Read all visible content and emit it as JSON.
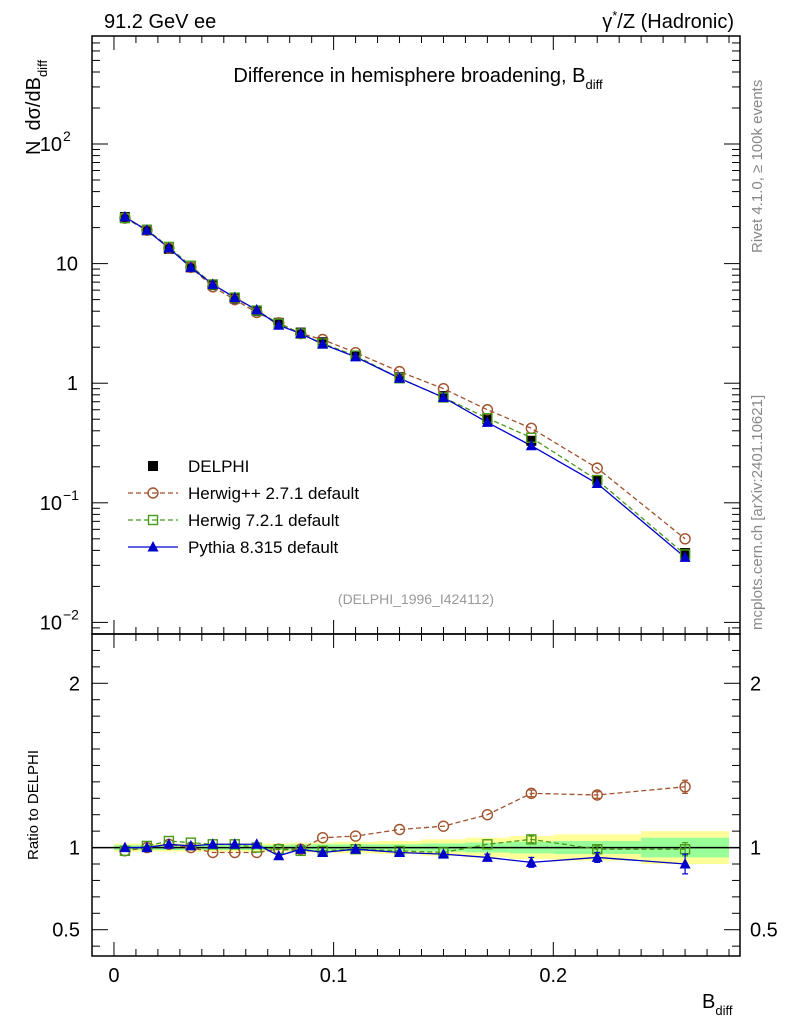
{
  "header": {
    "left": "91.2 GeV ee",
    "right_prefix": "γ",
    "right_sup": "*",
    "right_suffix": "/Z (Hadronic)"
  },
  "side_labels": {
    "rivet": "Rivet 4.1.0, ≥ 100k events",
    "mcplots": "mcplots.cern.ch [arXiv:2401.10621]"
  },
  "chart_data": {
    "type": "line",
    "title": "Difference in hemisphere broadening, B",
    "title_sub": "diff",
    "analysis_label": "(DELPHI_1996_I424112)",
    "xlabel": "B",
    "xlabel_sub": "diff",
    "ylabel_main": "N",
    "ylabel_dsigma": "dσ/dB",
    "ylabel_sub": "diff",
    "ylabel_ratio": "Ratio to DELPHI",
    "xlim": [
      -0.01,
      0.285
    ],
    "ylim_main": [
      0.008,
      800
    ],
    "ylim_ratio": [
      0.34,
      2.3
    ],
    "log_y_main": true,
    "x_ticks": [
      {
        "v": 0,
        "label": "0"
      },
      {
        "v": 0.1,
        "label": "0.1"
      },
      {
        "v": 0.2,
        "label": "0.2"
      }
    ],
    "y_ticks_main": [
      {
        "v": 0.01,
        "base": "10",
        "exp": "−2"
      },
      {
        "v": 0.1,
        "base": "10",
        "exp": "−1"
      },
      {
        "v": 1,
        "base": "1",
        "exp": ""
      },
      {
        "v": 10,
        "base": "10",
        "exp": ""
      },
      {
        "v": 100,
        "base": "10",
        "exp": "2"
      }
    ],
    "y_ticks_ratio": [
      {
        "v": 0.5,
        "label": "0.5"
      },
      {
        "v": 1,
        "label": "1"
      },
      {
        "v": 2,
        "label": "2"
      }
    ],
    "x": [
      0.005,
      0.015,
      0.025,
      0.035,
      0.045,
      0.055,
      0.065,
      0.075,
      0.085,
      0.095,
      0.11,
      0.13,
      0.15,
      0.17,
      0.19,
      0.22,
      0.26
    ],
    "bins": [
      [
        0,
        0.01
      ],
      [
        0.01,
        0.02
      ],
      [
        0.02,
        0.03
      ],
      [
        0.03,
        0.04
      ],
      [
        0.04,
        0.05
      ],
      [
        0.05,
        0.06
      ],
      [
        0.06,
        0.07
      ],
      [
        0.07,
        0.08
      ],
      [
        0.08,
        0.09
      ],
      [
        0.09,
        0.1
      ],
      [
        0.1,
        0.12
      ],
      [
        0.12,
        0.14
      ],
      [
        0.14,
        0.16
      ],
      [
        0.16,
        0.18
      ],
      [
        0.18,
        0.2
      ],
      [
        0.2,
        0.24
      ],
      [
        0.24,
        0.28
      ]
    ],
    "band_inner": [
      0.015,
      0.015,
      0.015,
      0.015,
      0.015,
      0.015,
      0.015,
      0.015,
      0.02,
      0.02,
      0.02,
      0.02,
      0.025,
      0.03,
      0.035,
      0.04,
      0.06
    ],
    "band_outer": [
      0.025,
      0.025,
      0.025,
      0.025,
      0.025,
      0.025,
      0.025,
      0.025,
      0.03,
      0.03,
      0.035,
      0.04,
      0.05,
      0.06,
      0.07,
      0.08,
      0.1
    ],
    "series": [
      {
        "name": "DELPHI",
        "style": "data",
        "color": "#000000",
        "values": [
          24.5,
          19.0,
          13.3,
          9.3,
          6.6,
          5.1,
          4.0,
          3.2,
          2.65,
          2.2,
          1.7,
          1.12,
          0.78,
          0.5,
          0.33,
          0.155,
          0.038
        ]
      },
      {
        "name": "Herwig++ 2.7.1 default",
        "style": "circle",
        "color": "#a0522d",
        "values": [
          24.0,
          19.0,
          13.5,
          9.3,
          6.4,
          5.0,
          3.9,
          3.2,
          2.6,
          2.32,
          1.8,
          1.25,
          0.9,
          0.6,
          0.42,
          0.195,
          0.05
        ],
        "ratio": [
          0.98,
          1.0,
          1.02,
          1.0,
          0.97,
          0.97,
          0.97,
          0.99,
          0.99,
          1.06,
          1.07,
          1.11,
          1.13,
          1.2,
          1.33,
          1.32,
          1.37
        ],
        "ratio_err": [
          0,
          0,
          0,
          0,
          0,
          0,
          0,
          0,
          0,
          0,
          0,
          0,
          0,
          0,
          0.02,
          0.02,
          0.04
        ]
      },
      {
        "name": "Herwig 7.2.1 default",
        "style": "square",
        "color": "#4a9a1a",
        "values": [
          24.0,
          19.2,
          13.8,
          9.6,
          6.7,
          5.2,
          4.05,
          3.15,
          2.6,
          2.15,
          1.7,
          1.1,
          0.76,
          0.51,
          0.35,
          0.155,
          0.037
        ],
        "ratio": [
          0.98,
          1.01,
          1.04,
          1.03,
          1.02,
          1.02,
          1.0,
          0.99,
          0.98,
          0.98,
          0.99,
          0.98,
          0.97,
          1.02,
          1.05,
          0.99,
          0.99
        ],
        "ratio_err": [
          0,
          0,
          0,
          0,
          0,
          0,
          0,
          0,
          0,
          0,
          0,
          0,
          0,
          0,
          0.02,
          0.02,
          0.04
        ]
      },
      {
        "name": "Pythia 8.315 default",
        "style": "triangle",
        "color": "#0000cc",
        "values": [
          24.6,
          19.0,
          13.5,
          9.3,
          6.7,
          5.2,
          4.1,
          3.05,
          2.6,
          2.12,
          1.66,
          1.1,
          0.76,
          0.47,
          0.3,
          0.145,
          0.035
        ],
        "ratio": [
          1.0,
          1.0,
          1.02,
          1.01,
          1.02,
          1.02,
          1.02,
          0.95,
          0.99,
          0.97,
          0.99,
          0.97,
          0.96,
          0.94,
          0.91,
          0.94,
          0.9
        ],
        "ratio_err": [
          0,
          0,
          0,
          0,
          0,
          0,
          0,
          0,
          0,
          0,
          0,
          0,
          0,
          0.02,
          0.03,
          0.03,
          0.06
        ]
      }
    ]
  }
}
